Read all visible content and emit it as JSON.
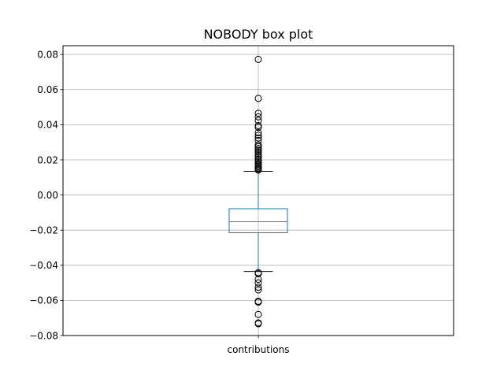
{
  "chart_data": {
    "type": "box",
    "title": "NOBODY box plot",
    "categories": [
      "contributions"
    ],
    "ylim": [
      -0.08,
      0.085
    ],
    "yticks": [
      -0.08,
      -0.06,
      -0.04,
      -0.02,
      0.0,
      0.02,
      0.04,
      0.06,
      0.08
    ],
    "ytick_labels": [
      "−0.08",
      "−0.06",
      "−0.04",
      "−0.02",
      "0.00",
      "0.02",
      "0.04",
      "0.06",
      "0.08"
    ],
    "grid": true,
    "boxes": [
      {
        "name": "contributions",
        "q1": -0.0215,
        "median": -0.0152,
        "q3": -0.0078,
        "whisker_low": -0.0435,
        "whisker_high": 0.0135,
        "outliers": [
          0.0772,
          0.055,
          0.0465,
          0.0445,
          0.0425,
          0.0395,
          0.0385,
          0.0355,
          0.034,
          0.0325,
          0.031,
          0.0285,
          0.0275,
          0.0265,
          0.0255,
          0.0245,
          0.0235,
          0.0225,
          0.0215,
          0.0205,
          0.0195,
          0.0185,
          0.0175,
          0.0168,
          0.0162,
          0.0155,
          0.0148,
          0.0142,
          -0.0442,
          -0.0448,
          -0.048,
          -0.05,
          -0.0525,
          -0.054,
          -0.0605,
          -0.061,
          -0.068,
          -0.0728,
          -0.0733
        ]
      }
    ],
    "colors": {
      "box": "#1f77b4",
      "median": "#2ca02c",
      "whisker_cap": "#000000",
      "outlier": "#000000",
      "grid": "#b0b0b0"
    }
  }
}
